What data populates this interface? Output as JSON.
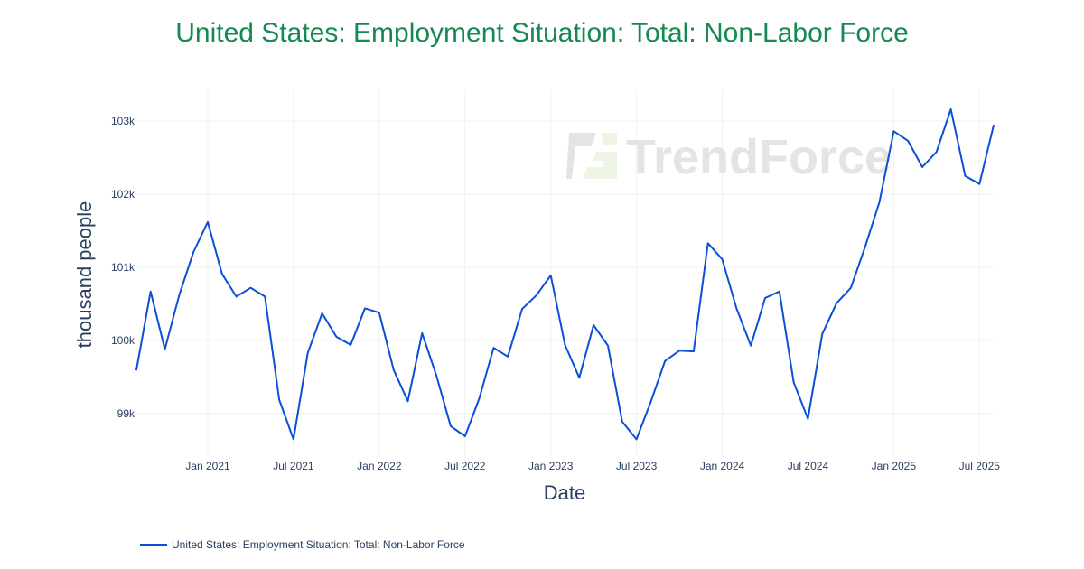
{
  "chart_data": {
    "type": "line",
    "title": "United States: Employment Situation: Total: Non-Labor Force",
    "xlabel": "Date",
    "ylabel": "thousand people",
    "x_ticks": [
      "Jan 2021",
      "Jul 2021",
      "Jan 2022",
      "Jul 2022",
      "Jan 2023",
      "Jul 2023",
      "Jan 2024",
      "Jul 2024",
      "Jan 2025",
      "Jul 2025"
    ],
    "x_tick_dates": [
      "2021-01",
      "2021-07",
      "2022-01",
      "2022-07",
      "2023-01",
      "2023-07",
      "2024-01",
      "2024-07",
      "2025-01",
      "2025-07"
    ],
    "y_ticks": [
      99000,
      100000,
      101000,
      102000,
      103000
    ],
    "y_tick_labels": [
      "99k",
      "100k",
      "101k",
      "102k",
      "103k"
    ],
    "ylim": [
      98500,
      103400
    ],
    "xlim": [
      "2020-08",
      "2025-08"
    ],
    "grid": true,
    "legend_placement": "bottom-left",
    "watermark": "TrendForce",
    "colors": {
      "line": "#0a4fd6",
      "title": "#148a52",
      "grid": "#eef0f4"
    },
    "series": [
      {
        "name": "United States: Employment Situation: Total: Non-Labor Force",
        "x": [
          "2020-08",
          "2020-09",
          "2020-10",
          "2020-11",
          "2020-12",
          "2021-01",
          "2021-02",
          "2021-03",
          "2021-04",
          "2021-05",
          "2021-06",
          "2021-07",
          "2021-08",
          "2021-09",
          "2021-10",
          "2021-11",
          "2021-12",
          "2022-01",
          "2022-02",
          "2022-03",
          "2022-04",
          "2022-05",
          "2022-06",
          "2022-07",
          "2022-08",
          "2022-09",
          "2022-10",
          "2022-11",
          "2022-12",
          "2023-01",
          "2023-02",
          "2023-03",
          "2023-04",
          "2023-05",
          "2023-06",
          "2023-07",
          "2023-08",
          "2023-09",
          "2023-10",
          "2023-11",
          "2023-12",
          "2024-01",
          "2024-02",
          "2024-03",
          "2024-04",
          "2024-05",
          "2024-06",
          "2024-07",
          "2024-08",
          "2024-09",
          "2024-10",
          "2024-11",
          "2024-12",
          "2025-01",
          "2025-02",
          "2025-03",
          "2025-04",
          "2025-05",
          "2025-06",
          "2025-07",
          "2025-08"
        ],
        "values": [
          99590,
          100670,
          99880,
          100620,
          101210,
          101620,
          100910,
          100600,
          100720,
          100600,
          99190,
          98650,
          99830,
          100370,
          100050,
          99940,
          100440,
          100380,
          99600,
          99170,
          100100,
          99520,
          98830,
          98690,
          99210,
          99900,
          99780,
          100430,
          100620,
          100890,
          99940,
          99490,
          100210,
          99930,
          98890,
          98650,
          99160,
          99720,
          99860,
          99850,
          101330,
          101110,
          100440,
          99930,
          100580,
          100670,
          99430,
          98930,
          100090,
          100510,
          100720,
          101280,
          101890,
          102860,
          102730,
          102370,
          102580,
          103160,
          102250,
          102140,
          102950
        ]
      }
    ]
  }
}
